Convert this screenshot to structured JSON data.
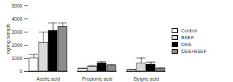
{
  "chart_data": {
    "type": "bar",
    "y_label": "ng/mg sample",
    "categories": [
      "Acetic acid",
      "Propionic acid",
      "Butyric acid"
    ],
    "series": [
      {
        "name": "Control",
        "color": "#ffffff",
        "values": [
          1000,
          180,
          100
        ],
        "errors": [
          300,
          60,
          60
        ]
      },
      {
        "name": "BSEF",
        "color": "#d9d9d9",
        "values": [
          2200,
          350,
          620
        ],
        "errors": [
          800,
          120,
          400
        ]
      },
      {
        "name": "DSS",
        "color": "#000000",
        "values": [
          3100,
          620,
          520
        ],
        "errors": [
          600,
          100,
          180
        ]
      },
      {
        "name": "DSS+BSEF",
        "color": "#8c8c8c",
        "values": [
          3400,
          430,
          200
        ],
        "errors": [
          300,
          80,
          80
        ]
      }
    ],
    "ylim": [
      0,
      5000
    ],
    "yticks": [
      0,
      1000,
      2000,
      3000,
      4000,
      5000
    ],
    "grid": false,
    "legend": "right"
  }
}
